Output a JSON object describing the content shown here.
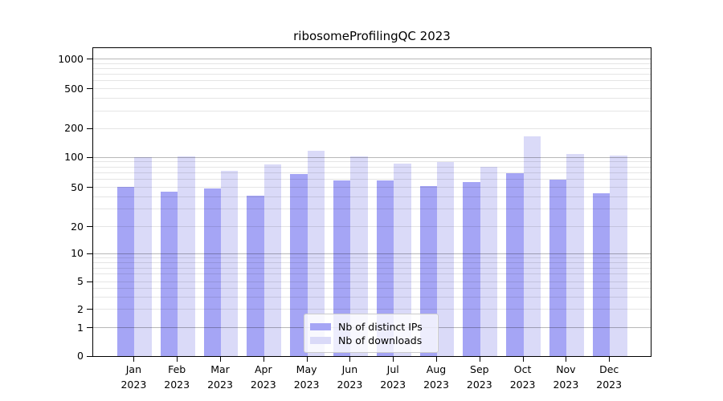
{
  "title": "ribosomeProfilingQC 2023",
  "chart_data": {
    "type": "bar",
    "title": "ribosomeProfilingQC 2023",
    "months": [
      "Jan",
      "Feb",
      "Mar",
      "Apr",
      "May",
      "Jun",
      "Jul",
      "Aug",
      "Sep",
      "Oct",
      "Nov",
      "Dec"
    ],
    "year": "2023",
    "series": [
      {
        "name": "Nb of distinct IPs",
        "color": "#a5a5f5",
        "values": [
          50,
          45,
          48,
          41,
          67,
          58,
          58,
          51,
          56,
          69,
          59,
          43
        ]
      },
      {
        "name": "Nb of downloads",
        "color": "#dadaf8",
        "values": [
          100,
          102,
          73,
          85,
          115,
          102,
          86,
          90,
          80,
          163,
          107,
          104
        ]
      }
    ],
    "y_ticks": [
      0,
      1,
      2,
      5,
      10,
      20,
      50,
      100,
      200,
      500,
      1000
    ],
    "ylim": [
      0,
      1400
    ],
    "scale": "log-like with 1-2-5 labeled ticks, 0 baseline",
    "grid": true,
    "legend_position": "bottom-center inside plot",
    "xlabel": "",
    "ylabel": ""
  },
  "colors": {
    "grid_major": "rgba(0,0,0,0.28)",
    "grid_minor": "rgba(0,0,0,0.10)",
    "axis": "#000000",
    "background": "#ffffff"
  }
}
